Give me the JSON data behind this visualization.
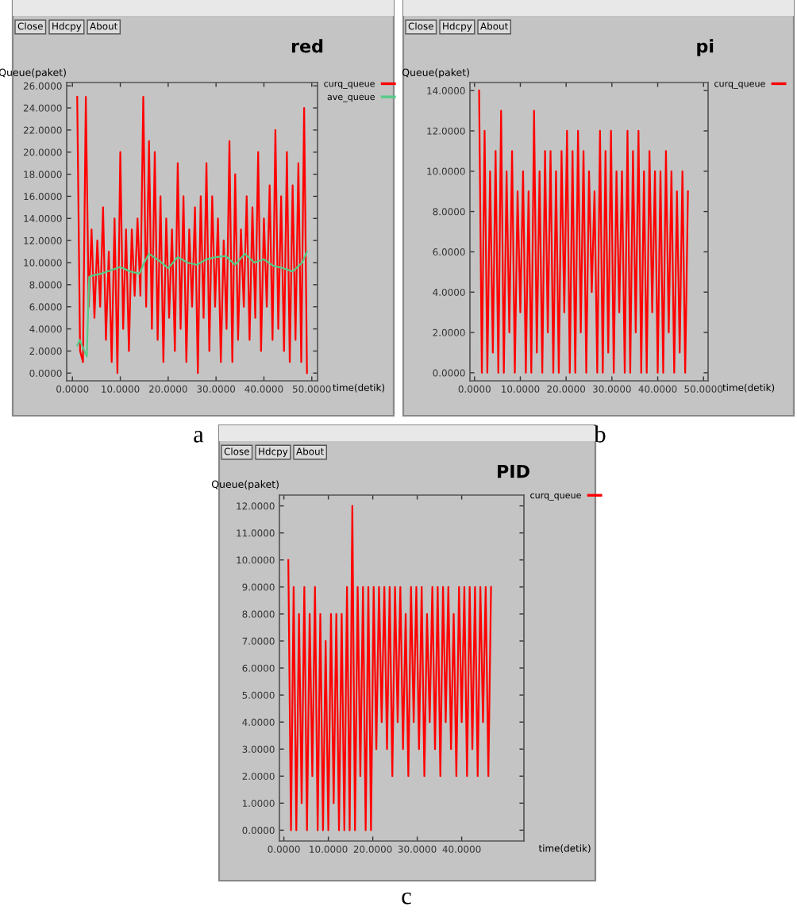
{
  "chart_data": [
    {
      "type": "line",
      "title": "red",
      "xlabel": "time(detik)",
      "ylabel": "Queue(paket)",
      "legend": "right",
      "grid": false,
      "annotations": [
        "Close",
        "Hdcpy",
        "About",
        "a"
      ],
      "xlim": [
        -1.2,
        51.2
      ],
      "ylim": [
        -0.7,
        26.3
      ],
      "xticks": [
        {
          "value": 0,
          "label": "0.0000"
        },
        {
          "value": 10,
          "label": "10.0000"
        },
        {
          "value": 20,
          "label": "20.0000"
        },
        {
          "value": 30,
          "label": "30.0000"
        },
        {
          "value": 40,
          "label": "40.0000"
        },
        {
          "value": 50,
          "label": "50.0000"
        }
      ],
      "yticks": [
        {
          "value": 0,
          "label": "0.0000"
        },
        {
          "value": 2,
          "label": "2.0000"
        },
        {
          "value": 4,
          "label": "4.0000"
        },
        {
          "value": 6,
          "label": "6.0000"
        },
        {
          "value": 8,
          "label": "8.0000"
        },
        {
          "value": 10,
          "label": "10.0000"
        },
        {
          "value": 12,
          "label": "12.0000"
        },
        {
          "value": 14,
          "label": "14.0000"
        },
        {
          "value": 16,
          "label": "16.0000"
        },
        {
          "value": 18,
          "label": "18.0000"
        },
        {
          "value": 20,
          "label": "20.0000"
        },
        {
          "value": 22,
          "label": "22.0000"
        },
        {
          "value": 24,
          "label": "24.0000"
        },
        {
          "value": 26,
          "label": "26.0000"
        }
      ],
      "series": [
        {
          "name": "curq_queue",
          "color": "#ff0000",
          "x": [
            1.0,
            1.6,
            2.2,
            2.8,
            3.4,
            4.0,
            4.6,
            5.2,
            5.8,
            6.4,
            7.0,
            7.6,
            8.2,
            8.8,
            9.4,
            10.0,
            10.6,
            11.2,
            11.8,
            12.4,
            13.0,
            13.6,
            14.2,
            14.8,
            15.4,
            16.0,
            16.6,
            17.2,
            17.8,
            18.4,
            19.0,
            19.6,
            20.2,
            20.8,
            21.4,
            22.0,
            22.6,
            23.2,
            23.8,
            24.4,
            25.0,
            25.6,
            26.2,
            26.8,
            27.4,
            28.0,
            28.6,
            29.2,
            29.8,
            30.4,
            31.0,
            31.6,
            32.2,
            32.8,
            33.4,
            34.0,
            34.6,
            35.2,
            35.8,
            36.4,
            37.0,
            37.6,
            38.2,
            38.8,
            39.4,
            40.0,
            40.6,
            41.2,
            41.8,
            42.4,
            43.0,
            43.6,
            44.2,
            44.8,
            45.4,
            46.0,
            46.6,
            47.2,
            47.8,
            48.4,
            49.0
          ],
          "values": [
            25,
            2,
            1,
            25,
            6,
            13,
            5,
            12,
            6,
            15,
            3,
            11,
            1,
            14,
            0,
            20,
            4,
            13,
            2,
            13,
            7,
            14,
            7,
            25,
            6,
            21,
            4,
            20,
            3,
            16,
            1,
            14,
            5,
            13,
            2,
            19,
            4,
            16,
            1,
            13,
            6,
            15,
            0,
            16,
            5,
            19,
            2,
            16,
            6,
            14,
            1,
            12,
            4,
            21,
            1,
            18,
            3,
            13,
            6,
            16,
            3,
            15,
            5,
            20,
            2,
            14,
            6,
            17,
            3,
            22,
            4,
            16,
            2,
            20,
            1,
            17,
            3,
            19,
            1,
            24,
            0
          ]
        },
        {
          "name": "ave_queue",
          "color": "#55cc88",
          "x": [
            1,
            1.5,
            2,
            2.5,
            3,
            3.5,
            4,
            6,
            8,
            10,
            12,
            14,
            15,
            16,
            18,
            20,
            22,
            24,
            26,
            28,
            30,
            32,
            34,
            36,
            38,
            40,
            42,
            44,
            46,
            48,
            49
          ],
          "values": [
            2.5,
            3,
            2.5,
            2,
            1.5,
            8.7,
            8.8,
            9,
            9.3,
            9.6,
            9.2,
            9,
            10,
            10.8,
            10.2,
            9.5,
            10.5,
            10,
            9.8,
            10.3,
            10.5,
            10.6,
            9.8,
            10.8,
            10,
            10.3,
            9.7,
            9.5,
            9.2,
            10,
            11
          ]
        }
      ]
    },
    {
      "type": "line",
      "title": "pi",
      "xlabel": "time(detik)",
      "ylabel": "Queue(paket)",
      "legend": "right",
      "grid": false,
      "annotations": [
        "Close",
        "Hdcpy",
        "About",
        "b"
      ],
      "xlim": [
        -1.0,
        51.0
      ],
      "ylim": [
        -0.4,
        14.4
      ],
      "xticks": [
        {
          "value": 0,
          "label": "0.0000"
        },
        {
          "value": 10,
          "label": "10.0000"
        },
        {
          "value": 20,
          "label": "20.0000"
        },
        {
          "value": 30,
          "label": "30.0000"
        },
        {
          "value": 40,
          "label": "40.0000"
        },
        {
          "value": 50,
          "label": "50.0000"
        }
      ],
      "yticks": [
        {
          "value": 0,
          "label": "0.0000"
        },
        {
          "value": 2,
          "label": "2.0000"
        },
        {
          "value": 4,
          "label": "4.0000"
        },
        {
          "value": 6,
          "label": "6.0000"
        },
        {
          "value": 8,
          "label": "8.0000"
        },
        {
          "value": 10,
          "label": "10.0000"
        },
        {
          "value": 12,
          "label": "12.0000"
        },
        {
          "value": 14,
          "label": "14.0000"
        }
      ],
      "series": [
        {
          "name": "curq_queue",
          "color": "#ff0000",
          "x": [
            1.0,
            1.6,
            2.2,
            2.8,
            3.4,
            4.0,
            4.6,
            5.2,
            5.8,
            6.4,
            7.0,
            7.6,
            8.2,
            8.8,
            9.4,
            10.0,
            10.6,
            11.2,
            11.8,
            12.4,
            13.0,
            13.6,
            14.2,
            14.8,
            15.4,
            16.0,
            16.6,
            17.2,
            17.8,
            18.4,
            19.0,
            19.6,
            20.2,
            20.8,
            21.4,
            22.0,
            22.6,
            23.2,
            23.8,
            24.4,
            25.0,
            25.6,
            26.2,
            26.8,
            27.4,
            28.0,
            28.6,
            29.2,
            29.8,
            30.4,
            31.0,
            31.6,
            32.2,
            32.8,
            33.4,
            34.0,
            34.6,
            35.2,
            35.8,
            36.4,
            37.0,
            37.6,
            38.2,
            38.8,
            39.4,
            40.0,
            40.6,
            41.2,
            41.8,
            42.4,
            43.0,
            43.6,
            44.2,
            44.8,
            45.4,
            46.0,
            46.6
          ],
          "values": [
            14,
            0,
            12,
            0,
            10,
            1,
            11,
            0,
            13,
            0,
            10,
            2,
            11,
            0,
            9,
            3,
            10,
            0,
            9,
            0,
            13,
            1,
            10,
            0,
            11,
            2,
            11,
            0,
            10,
            0,
            11,
            3,
            12,
            0,
            11,
            0,
            12,
            2,
            11,
            0,
            10,
            4,
            9,
            0,
            12,
            0,
            11,
            1,
            12,
            0,
            10,
            3,
            10,
            0,
            12,
            0,
            11,
            2,
            12,
            0,
            10,
            0,
            11,
            3,
            10,
            0,
            10,
            0,
            11,
            2,
            10,
            0,
            9,
            1,
            10,
            0,
            9
          ]
        }
      ]
    },
    {
      "type": "line",
      "title": "PID",
      "xlabel": "time(detik)",
      "ylabel": "Queue(paket)",
      "legend": "right",
      "grid": false,
      "annotations": [
        "Close",
        "Hdcpy",
        "About",
        "c"
      ],
      "xlim": [
        -1.0,
        54.0
      ],
      "ylim": [
        -0.4,
        12.4
      ],
      "xticks": [
        {
          "value": 0,
          "label": "0.0000"
        },
        {
          "value": 10,
          "label": "10.0000"
        },
        {
          "value": 20,
          "label": "20.0000"
        },
        {
          "value": 30,
          "label": "30.0000"
        },
        {
          "value": 40,
          "label": "40.0000"
        }
      ],
      "yticks": [
        {
          "value": 0,
          "label": "0.0000"
        },
        {
          "value": 1,
          "label": "1.0000"
        },
        {
          "value": 2,
          "label": "2.0000"
        },
        {
          "value": 3,
          "label": "3.0000"
        },
        {
          "value": 4,
          "label": "4.0000"
        },
        {
          "value": 5,
          "label": "5.0000"
        },
        {
          "value": 6,
          "label": "6.0000"
        },
        {
          "value": 7,
          "label": "7.0000"
        },
        {
          "value": 8,
          "label": "8.0000"
        },
        {
          "value": 9,
          "label": "9.0000"
        },
        {
          "value": 10,
          "label": "10.0000"
        },
        {
          "value": 11,
          "label": "11.0000"
        },
        {
          "value": 12,
          "label": "12.0000"
        }
      ],
      "series": [
        {
          "name": "curq_queue",
          "color": "#ff0000",
          "x": [
            1.0,
            1.6,
            2.2,
            2.8,
            3.4,
            4.0,
            4.6,
            5.2,
            5.8,
            6.4,
            7.0,
            7.6,
            8.2,
            8.8,
            9.4,
            10.0,
            10.6,
            11.2,
            11.8,
            12.4,
            13.0,
            13.6,
            14.2,
            14.8,
            15.4,
            16.0,
            16.6,
            17.2,
            17.8,
            18.4,
            19.0,
            19.6,
            20.2,
            20.8,
            21.4,
            22.0,
            22.6,
            23.2,
            23.8,
            24.4,
            25.0,
            25.6,
            26.2,
            26.8,
            27.4,
            28.0,
            28.6,
            29.2,
            29.8,
            30.4,
            31.0,
            31.6,
            32.2,
            32.8,
            33.4,
            34.0,
            34.6,
            35.2,
            35.8,
            36.4,
            37.0,
            37.6,
            38.2,
            38.8,
            39.4,
            40.0,
            40.6,
            41.2,
            41.8,
            42.4,
            43.0,
            43.6,
            44.2,
            44.8,
            45.4,
            46.0,
            46.6
          ],
          "values": [
            10,
            0,
            9,
            0,
            8,
            1,
            9,
            0,
            8,
            2,
            9,
            0,
            8,
            0,
            7,
            0,
            8,
            1,
            8,
            0,
            8,
            0,
            9,
            0,
            12,
            0,
            9,
            2,
            9,
            0,
            9,
            0,
            9,
            3,
            9,
            4,
            9,
            3,
            9,
            2,
            9,
            4,
            9,
            3,
            8,
            2,
            9,
            4,
            9,
            3,
            9,
            2,
            8,
            4,
            9,
            3,
            9,
            2,
            9,
            4,
            9,
            3,
            8,
            2,
            9,
            4,
            9,
            2,
            9,
            3,
            9,
            2,
            9,
            4,
            9,
            2,
            9
          ]
        }
      ]
    }
  ]
}
